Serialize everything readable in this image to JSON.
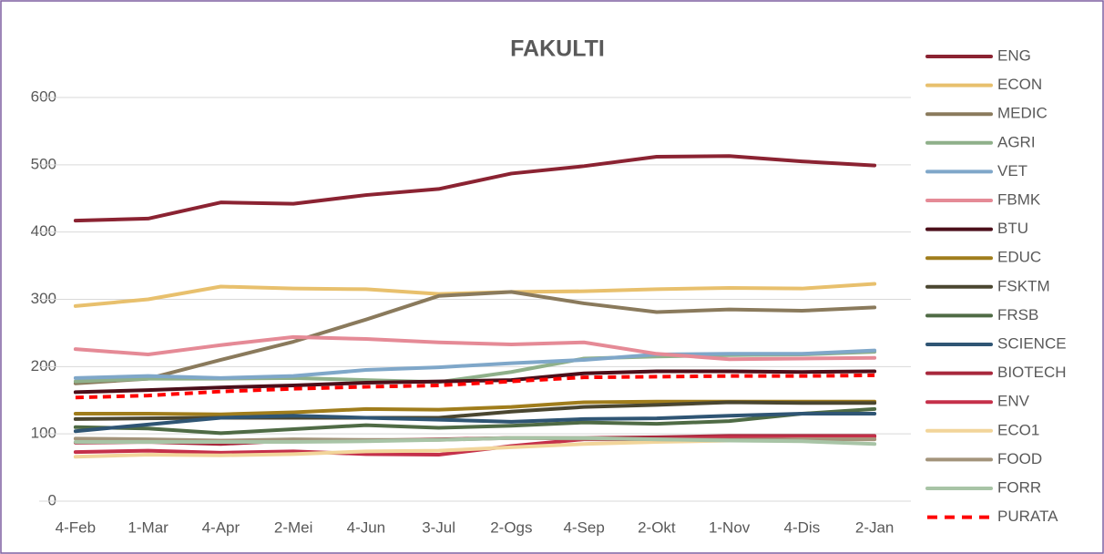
{
  "chart_data": {
    "type": "line",
    "title": "FAKULTI",
    "categories": [
      "4-Feb",
      "1-Mar",
      "4-Apr",
      "2-Mei",
      "4-Jun",
      "3-Jul",
      "2-Ogs",
      "4-Sep",
      "2-Okt",
      "1-Nov",
      "4-Dis",
      "2-Jan"
    ],
    "ylim": [
      0,
      600
    ],
    "yticks": [
      0,
      100,
      200,
      300,
      400,
      500,
      600
    ],
    "grid": true,
    "legend": "right",
    "series": [
      {
        "name": "ENG",
        "color": "#8b2332",
        "values": [
          417,
          420,
          444,
          442,
          455,
          464,
          487,
          498,
          512,
          513,
          505,
          499
        ]
      },
      {
        "name": "ECON",
        "color": "#e8c06d",
        "values": [
          290,
          300,
          319,
          316,
          315,
          308,
          311,
          312,
          315,
          317,
          316,
          323
        ]
      },
      {
        "name": "MEDIC",
        "color": "#8a7a5c",
        "values": [
          175,
          182,
          210,
          237,
          270,
          305,
          311,
          294,
          281,
          285,
          283,
          288
        ]
      },
      {
        "name": "AGRI",
        "color": "#8fb08a",
        "values": [
          178,
          182,
          182,
          183,
          180,
          177,
          192,
          212,
          215,
          217,
          218,
          222
        ]
      },
      {
        "name": "VET",
        "color": "#7fa7c9",
        "values": [
          183,
          186,
          183,
          186,
          195,
          199,
          205,
          210,
          218,
          219,
          219,
          224
        ]
      },
      {
        "name": "FBMK",
        "color": "#e58a96",
        "values": [
          226,
          218,
          232,
          244,
          241,
          236,
          233,
          236,
          219,
          211,
          212,
          213
        ]
      },
      {
        "name": "BTU",
        "color": "#4b0f1a",
        "values": [
          162,
          165,
          169,
          172,
          176,
          178,
          180,
          190,
          193,
          193,
          192,
          193
        ]
      },
      {
        "name": "EDUC",
        "color": "#a07d1c",
        "values": [
          130,
          130,
          129,
          132,
          137,
          136,
          140,
          147,
          148,
          148,
          148,
          148
        ]
      },
      {
        "name": "FSKTM",
        "color": "#4a4630",
        "values": [
          122,
          123,
          124,
          124,
          124,
          124,
          133,
          140,
          143,
          147,
          146,
          146
        ]
      },
      {
        "name": "FRSB",
        "color": "#4f6b45",
        "values": [
          110,
          108,
          101,
          107,
          113,
          109,
          112,
          117,
          115,
          119,
          130,
          137
        ]
      },
      {
        "name": "SCIENCE",
        "color": "#2f5574",
        "values": [
          104,
          114,
          124,
          127,
          124,
          121,
          118,
          122,
          123,
          127,
          130,
          130
        ]
      },
      {
        "name": "BIOTECH",
        "color": "#a8283c",
        "values": [
          87,
          88,
          85,
          90,
          90,
          92,
          94,
          94,
          95,
          97,
          97,
          97
        ]
      },
      {
        "name": "ENV",
        "color": "#c5304a",
        "values": [
          73,
          75,
          72,
          74,
          70,
          69,
          82,
          92,
          92,
          95,
          95,
          96
        ]
      },
      {
        "name": "ECO1",
        "color": "#f2d59a",
        "values": [
          66,
          69,
          68,
          70,
          74,
          75,
          80,
          85,
          88,
          90,
          92,
          92
        ]
      },
      {
        "name": "FOOD",
        "color": "#a3947b",
        "values": [
          93,
          92,
          90,
          92,
          91,
          91,
          94,
          93,
          92,
          91,
          92,
          92
        ]
      },
      {
        "name": "FORR",
        "color": "#a8c4a6",
        "values": [
          88,
          88,
          88,
          88,
          89,
          91,
          94,
          94,
          92,
          90,
          89,
          85
        ]
      },
      {
        "name": "PURATA",
        "color": "#ff0000",
        "dashed": true,
        "values": [
          154,
          157,
          163,
          167,
          170,
          172,
          178,
          184,
          185,
          186,
          186,
          187
        ]
      }
    ]
  }
}
